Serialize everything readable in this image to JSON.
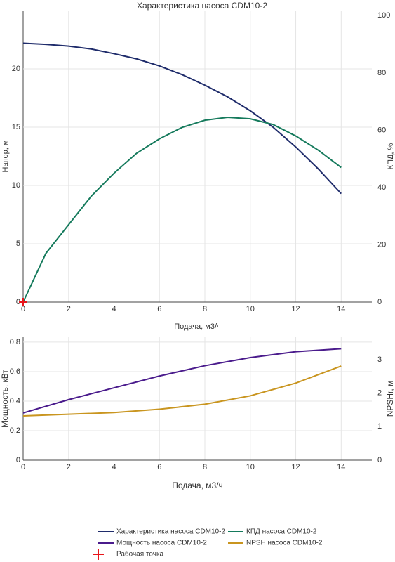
{
  "chart_data": [
    {
      "type": "line",
      "title": "Характеристика насоса CDM10-2",
      "x_label": "Подача, м3/ч",
      "y_label": "Напор, м",
      "y2_label": "КПД, %",
      "xlim": [
        0,
        15.35
      ],
      "xticks": [
        0,
        2,
        4,
        6,
        8,
        10,
        12,
        14
      ],
      "ylim": [
        0,
        25
      ],
      "yticks": [
        0,
        5,
        10,
        15,
        20
      ],
      "y2lim": [
        0,
        101.8
      ],
      "y2ticks": [
        0,
        20,
        40,
        60,
        80,
        100
      ],
      "grid": true,
      "x": [
        0,
        1,
        2,
        3,
        4,
        5,
        6,
        7,
        8,
        9,
        10,
        11,
        12,
        13,
        14
      ],
      "series": [
        {
          "name": "Характеристика насоса CDM10-2",
          "color": "#1f2c6b",
          "values": [
            22.2,
            22.1,
            21.95,
            21.7,
            21.3,
            20.85,
            20.25,
            19.5,
            18.6,
            17.6,
            16.4,
            15.0,
            13.3,
            11.4,
            9.3
          ]
        },
        {
          "name": "КПД насоса CDM10-2",
          "color": "#157a5c",
          "axis": "y2",
          "values": [
            0,
            17,
            27,
            37,
            45,
            52,
            57,
            61,
            63.5,
            64.5,
            64,
            62,
            58,
            53,
            47
          ]
        },
        {
          "name": "Рабочая точка",
          "color": "#e8161b",
          "mode": "markers",
          "x": [
            0
          ],
          "values": [
            0
          ]
        }
      ]
    },
    {
      "type": "line",
      "x_label": "Подача, м3/ч",
      "y_label": "Мощность, кВт",
      "y2_label": "NPSHr, м",
      "xlim": [
        0,
        15.35
      ],
      "xticks": [
        0,
        2,
        4,
        6,
        8,
        10,
        12,
        14
      ],
      "ylim": [
        0,
        0.833
      ],
      "yticks": [
        0,
        0.2,
        0.4,
        0.6,
        0.8
      ],
      "y2lim": [
        0,
        3.67
      ],
      "y2ticks": [
        0,
        1,
        2,
        3
      ],
      "grid": true,
      "x": [
        0,
        2,
        4,
        6,
        8,
        10,
        12,
        14
      ],
      "series": [
        {
          "name": "Мощность насоса CDM10-2",
          "color": "#4a1b8c",
          "values": [
            0.32,
            0.41,
            0.49,
            0.57,
            0.64,
            0.695,
            0.735,
            0.755
          ]
        },
        {
          "name": "NPSH насоса CDM10-2",
          "color": "#c9951f",
          "axis": "y2",
          "values": [
            1.32,
            1.37,
            1.42,
            1.52,
            1.67,
            1.92,
            2.3,
            2.81
          ]
        }
      ]
    }
  ]
}
